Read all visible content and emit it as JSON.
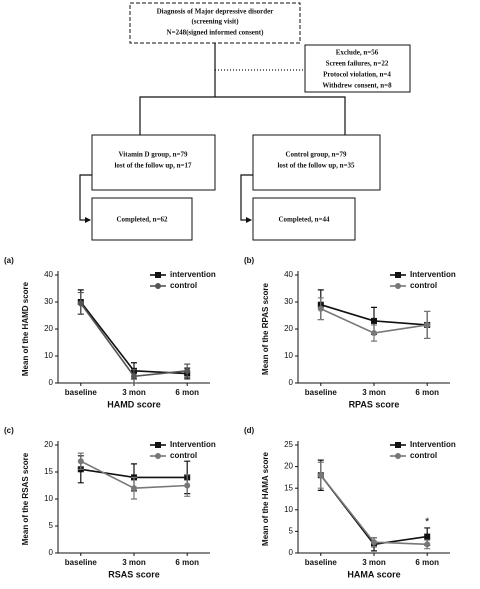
{
  "flowchart": {
    "screening": [
      "Diagnosis of  Major depressive disorder",
      "(screening visit)",
      "N=248(signed informed consent)"
    ],
    "exclude": [
      "Exclude, n=56",
      "Screen failures, n=22",
      "Protocol violation, n=4",
      "Withdrew consent, n=8"
    ],
    "vitamin_d": [
      "Vitamin D  group, n=79",
      "lost of the follow up, n=17"
    ],
    "control": [
      "Control  group, n=79",
      "lost of the follow up, n=35"
    ],
    "completed_vitamin_d": "Completed, n=62",
    "completed_control": "Completed, n=44"
  },
  "chart_data": [
    {
      "type": "line",
      "panel_label": "(a)",
      "x_label": "HAMD score",
      "y_label": "Mean of the HAMD score",
      "categories": [
        "baseline",
        "3 mon",
        "6 mon"
      ],
      "ylim": [
        0,
        40
      ],
      "yticks": [
        0,
        10,
        20,
        30,
        40
      ],
      "series": [
        {
          "name": "intervention",
          "color": "#111111",
          "marker": "square",
          "values": [
            30,
            4.5,
            3.5
          ],
          "errors": [
            4.5,
            3,
            2
          ]
        },
        {
          "name": "control",
          "color": "#555555",
          "marker": "circle",
          "values": [
            29.5,
            2.5,
            4.5
          ],
          "errors": [
            4,
            2.5,
            2.5
          ]
        }
      ]
    },
    {
      "type": "line",
      "panel_label": "(b)",
      "x_label": "RPAS score",
      "y_label": "Mean of the RPAS score",
      "categories": [
        "baseline",
        "3 mon",
        "6 mon"
      ],
      "ylim": [
        0,
        40
      ],
      "yticks": [
        0,
        10,
        20,
        30,
        40
      ],
      "series": [
        {
          "name": "Intervention",
          "color": "#111111",
          "marker": "square",
          "values": [
            29,
            23,
            21.5
          ],
          "errors": [
            5.5,
            5,
            5
          ]
        },
        {
          "name": "control",
          "color": "#777777",
          "marker": "circle",
          "values": [
            27.5,
            18.5,
            21.5
          ],
          "errors": [
            4,
            3,
            5
          ]
        }
      ]
    },
    {
      "type": "line",
      "panel_label": "(c)",
      "x_label": "RSAS score",
      "y_label": "Mean of the RSAS score",
      "categories": [
        "baseline",
        "3 mon",
        "6 mon"
      ],
      "ylim": [
        0,
        20
      ],
      "yticks": [
        0,
        5,
        10,
        15,
        20
      ],
      "series": [
        {
          "name": "Intervention",
          "color": "#111111",
          "marker": "square",
          "values": [
            15.5,
            14,
            14
          ],
          "errors": [
            2.5,
            2.5,
            3
          ]
        },
        {
          "name": "control",
          "color": "#777777",
          "marker": "circle",
          "values": [
            17,
            12,
            12.5
          ],
          "errors": [
            1.5,
            2,
            2
          ]
        }
      ]
    },
    {
      "type": "line",
      "panel_label": "(d)",
      "x_label": "HAMA score",
      "y_label": "Mean of the HAMA score",
      "categories": [
        "baseline",
        "3 mon",
        "6 mon"
      ],
      "ylim": [
        0,
        25
      ],
      "yticks": [
        0,
        5,
        10,
        15,
        20,
        25
      ],
      "annotation": "*",
      "series": [
        {
          "name": "Intervention",
          "color": "#111111",
          "marker": "square",
          "values": [
            18,
            2,
            3.8
          ],
          "errors": [
            3.5,
            1.5,
            2
          ]
        },
        {
          "name": "control",
          "color": "#777777",
          "marker": "circle",
          "values": [
            18,
            2.5,
            2
          ],
          "errors": [
            3,
            1,
            1
          ]
        }
      ]
    }
  ]
}
